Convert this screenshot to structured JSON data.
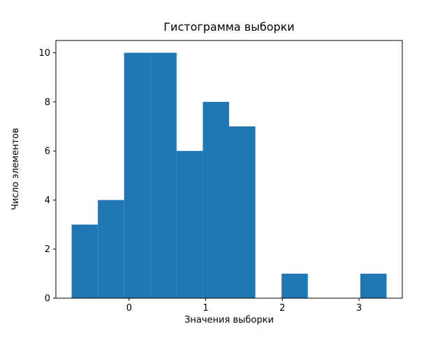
{
  "chart_data": {
    "type": "bar",
    "subtype": "histogram",
    "title": "Гистограмма выборки",
    "xlabel": "Значения выборки",
    "ylabel": "Число элементов",
    "bin_start": -0.75,
    "bin_width": 0.3425,
    "counts": [
      3,
      4,
      10,
      10,
      6,
      8,
      7,
      0,
      1,
      0,
      0,
      1
    ],
    "xticks": [
      0,
      1,
      2,
      3
    ],
    "yticks": [
      0,
      2,
      4,
      6,
      8,
      10
    ],
    "xlim": [
      -0.9555,
      3.5655
    ],
    "ylim": [
      0,
      10.5
    ],
    "bar_color": "#1f77b4",
    "axis_color": "#000000",
    "background": "#ffffff",
    "grid": false,
    "legend": "none"
  }
}
